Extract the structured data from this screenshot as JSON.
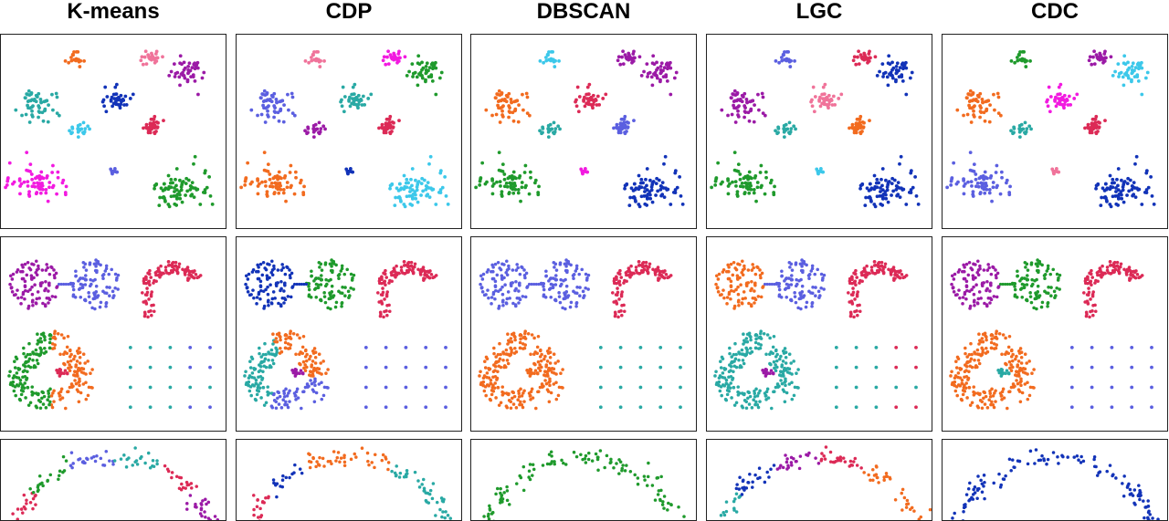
{
  "figure": {
    "methods": [
      "K-means",
      "CDP",
      "DBSCAN",
      "LGC",
      "CDC"
    ]
  },
  "colors": {
    "orange": "#f26b1f",
    "pink": "#f0739a",
    "purple": "#9b1aa6",
    "teal": "#29a9a4",
    "navy": "#1233b8",
    "cyan": "#3cc8ea",
    "crimson": "#dc2a56",
    "magenta": "#f21ae0",
    "slate": "#5b5fe0",
    "green": "#1f9a2c"
  },
  "chart_data": [
    {
      "type": "scatter",
      "title": "K-means",
      "row": "blobs",
      "clusters": [
        {
          "color": "orange",
          "center": [
            0.33,
            0.12
          ],
          "spread": [
            0.04,
            0.04
          ],
          "n": 20
        },
        {
          "color": "pink",
          "center": [
            0.67,
            0.12
          ],
          "spread": [
            0.05,
            0.04
          ],
          "n": 25
        },
        {
          "color": "purple",
          "center": [
            0.83,
            0.19
          ],
          "spread": [
            0.08,
            0.07
          ],
          "n": 45
        },
        {
          "color": "teal",
          "center": [
            0.16,
            0.36
          ],
          "spread": [
            0.1,
            0.08
          ],
          "n": 55
        },
        {
          "color": "navy",
          "center": [
            0.52,
            0.33
          ],
          "spread": [
            0.06,
            0.06
          ],
          "n": 40
        },
        {
          "color": "cyan",
          "center": [
            0.35,
            0.49
          ],
          "spread": [
            0.05,
            0.05
          ],
          "n": 22
        },
        {
          "color": "crimson",
          "center": [
            0.67,
            0.47
          ],
          "spread": [
            0.06,
            0.05
          ],
          "n": 35
        },
        {
          "color": "magenta",
          "center": [
            0.15,
            0.76
          ],
          "spread": [
            0.14,
            0.11
          ],
          "n": 70
        },
        {
          "color": "slate",
          "center": [
            0.5,
            0.71
          ],
          "spread": [
            0.025,
            0.02
          ],
          "n": 10
        },
        {
          "color": "green",
          "center": [
            0.8,
            0.8
          ],
          "spread": [
            0.15,
            0.12
          ],
          "n": 80
        }
      ]
    },
    {
      "type": "scatter",
      "title": "CDP",
      "row": "blobs",
      "clusters": [
        {
          "color": "pink",
          "center": [
            0.35,
            0.12
          ],
          "spread": [
            0.04,
            0.04
          ],
          "n": 20
        },
        {
          "color": "magenta",
          "center": [
            0.7,
            0.12
          ],
          "spread": [
            0.05,
            0.04
          ],
          "n": 25
        },
        {
          "color": "green",
          "center": [
            0.84,
            0.19
          ],
          "spread": [
            0.08,
            0.07
          ],
          "n": 45
        },
        {
          "color": "slate",
          "center": [
            0.16,
            0.36
          ],
          "spread": [
            0.1,
            0.08
          ],
          "n": 55
        },
        {
          "color": "teal",
          "center": [
            0.53,
            0.33
          ],
          "spread": [
            0.06,
            0.06
          ],
          "n": 40
        },
        {
          "color": "purple",
          "center": [
            0.35,
            0.49
          ],
          "spread": [
            0.05,
            0.05
          ],
          "n": 22
        },
        {
          "color": "crimson",
          "center": [
            0.67,
            0.47
          ],
          "spread": [
            0.06,
            0.05
          ],
          "n": 35
        },
        {
          "color": "orange",
          "center": [
            0.16,
            0.76
          ],
          "spread": [
            0.14,
            0.11
          ],
          "n": 70
        },
        {
          "color": "navy",
          "center": [
            0.5,
            0.71
          ],
          "spread": [
            0.025,
            0.02
          ],
          "n": 10
        },
        {
          "color": "cyan",
          "center": [
            0.8,
            0.8
          ],
          "spread": [
            0.15,
            0.12
          ],
          "n": 80
        }
      ]
    },
    {
      "type": "scatter",
      "title": "DBSCAN",
      "row": "blobs",
      "clusters": [
        {
          "color": "cyan",
          "center": [
            0.35,
            0.12
          ],
          "spread": [
            0.04,
            0.04
          ],
          "n": 20
        },
        {
          "color": "purple",
          "center": [
            0.7,
            0.12
          ],
          "spread": [
            0.05,
            0.04
          ],
          "n": 25
        },
        {
          "color": "purple",
          "center": [
            0.84,
            0.19
          ],
          "spread": [
            0.08,
            0.07
          ],
          "n": 45
        },
        {
          "color": "orange",
          "center": [
            0.16,
            0.36
          ],
          "spread": [
            0.1,
            0.08
          ],
          "n": 55
        },
        {
          "color": "crimson",
          "center": [
            0.53,
            0.33
          ],
          "spread": [
            0.06,
            0.06
          ],
          "n": 40
        },
        {
          "color": "teal",
          "center": [
            0.35,
            0.49
          ],
          "spread": [
            0.05,
            0.05
          ],
          "n": 22
        },
        {
          "color": "slate",
          "center": [
            0.67,
            0.47
          ],
          "spread": [
            0.06,
            0.05
          ],
          "n": 35
        },
        {
          "color": "green",
          "center": [
            0.16,
            0.76
          ],
          "spread": [
            0.14,
            0.11
          ],
          "n": 70
        },
        {
          "color": "magenta",
          "center": [
            0.5,
            0.71
          ],
          "spread": [
            0.025,
            0.02
          ],
          "n": 10
        },
        {
          "color": "navy",
          "center": [
            0.8,
            0.8
          ],
          "spread": [
            0.15,
            0.12
          ],
          "n": 80
        }
      ]
    },
    {
      "type": "scatter",
      "title": "LGC",
      "row": "blobs",
      "clusters": [
        {
          "color": "slate",
          "center": [
            0.35,
            0.12
          ],
          "spread": [
            0.04,
            0.04
          ],
          "n": 20
        },
        {
          "color": "crimson",
          "center": [
            0.7,
            0.12
          ],
          "spread": [
            0.05,
            0.04
          ],
          "n": 25
        },
        {
          "color": "navy",
          "center": [
            0.84,
            0.19
          ],
          "spread": [
            0.08,
            0.07
          ],
          "n": 45
        },
        {
          "color": "purple",
          "center": [
            0.16,
            0.36
          ],
          "spread": [
            0.1,
            0.08
          ],
          "n": 55
        },
        {
          "color": "pink",
          "center": [
            0.53,
            0.33
          ],
          "spread": [
            0.06,
            0.06
          ],
          "n": 40
        },
        {
          "color": "teal",
          "center": [
            0.35,
            0.49
          ],
          "spread": [
            0.05,
            0.05
          ],
          "n": 22
        },
        {
          "color": "orange",
          "center": [
            0.67,
            0.47
          ],
          "spread": [
            0.06,
            0.05
          ],
          "n": 35
        },
        {
          "color": "green",
          "center": [
            0.16,
            0.76
          ],
          "spread": [
            0.14,
            0.11
          ],
          "n": 70
        },
        {
          "color": "cyan",
          "center": [
            0.5,
            0.71
          ],
          "spread": [
            0.025,
            0.02
          ],
          "n": 10
        },
        {
          "color": "navy",
          "center": [
            0.8,
            0.8
          ],
          "spread": [
            0.15,
            0.12
          ],
          "n": 80
        }
      ]
    },
    {
      "type": "scatter",
      "title": "CDC",
      "row": "blobs",
      "clusters": [
        {
          "color": "green",
          "center": [
            0.35,
            0.12
          ],
          "spread": [
            0.04,
            0.04
          ],
          "n": 20
        },
        {
          "color": "purple",
          "center": [
            0.7,
            0.12
          ],
          "spread": [
            0.05,
            0.04
          ],
          "n": 25
        },
        {
          "color": "cyan",
          "center": [
            0.84,
            0.19
          ],
          "spread": [
            0.08,
            0.07
          ],
          "n": 45
        },
        {
          "color": "orange",
          "center": [
            0.16,
            0.36
          ],
          "spread": [
            0.1,
            0.08
          ],
          "n": 55
        },
        {
          "color": "magenta",
          "center": [
            0.53,
            0.33
          ],
          "spread": [
            0.06,
            0.06
          ],
          "n": 40
        },
        {
          "color": "teal",
          "center": [
            0.35,
            0.49
          ],
          "spread": [
            0.05,
            0.05
          ],
          "n": 22
        },
        {
          "color": "crimson",
          "center": [
            0.67,
            0.47
          ],
          "spread": [
            0.06,
            0.05
          ],
          "n": 35
        },
        {
          "color": "slate",
          "center": [
            0.16,
            0.76
          ],
          "spread": [
            0.14,
            0.11
          ],
          "n": 70
        },
        {
          "color": "pink",
          "center": [
            0.5,
            0.71
          ],
          "spread": [
            0.025,
            0.02
          ],
          "n": 10
        },
        {
          "color": "navy",
          "center": [
            0.8,
            0.8
          ],
          "spread": [
            0.15,
            0.12
          ],
          "n": 80
        }
      ]
    },
    {
      "type": "scatter",
      "title": "K-means",
      "row": "shapes",
      "parts": {
        "disc_left": "purple",
        "bridge": "slate",
        "disc_right": "slate",
        "arch": "crimson",
        "ring_left": "green",
        "ring_right": "orange",
        "core": "crimson",
        "grid": [
          "teal",
          "slate"
        ]
      }
    },
    {
      "type": "scatter",
      "title": "CDP",
      "row": "shapes",
      "parts": {
        "disc_left": "navy",
        "bridge": "navy",
        "disc_right": "green",
        "arch": "crimson",
        "ring_segments": [
          "teal",
          "orange",
          "slate"
        ],
        "core": "purple",
        "grid": [
          "slate",
          "slate"
        ]
      }
    },
    {
      "type": "scatter",
      "title": "DBSCAN",
      "row": "shapes",
      "parts": {
        "disc_left": "slate",
        "bridge": "slate",
        "disc_right": "slate",
        "arch": "crimson",
        "ring": "orange",
        "core": "orange",
        "grid": [
          "teal",
          "teal"
        ]
      }
    },
    {
      "type": "scatter",
      "title": "LGC",
      "row": "shapes",
      "parts": {
        "disc_left": "orange",
        "bridge": "slate",
        "disc_right": "slate",
        "arch": "crimson",
        "ring": "teal",
        "core": "purple",
        "grid": [
          "teal",
          "crimson"
        ]
      }
    },
    {
      "type": "scatter",
      "title": "CDC",
      "row": "shapes",
      "parts": {
        "disc_left": "purple",
        "bridge": "green",
        "disc_right": "green",
        "arch": "crimson",
        "ring": "orange",
        "core": "teal",
        "grid": [
          "slate",
          "slate"
        ]
      }
    },
    {
      "type": "scatter",
      "title": "K-means",
      "row": "arc",
      "segments": [
        "crimson",
        "green",
        "slate",
        "teal",
        "crimson",
        "purple"
      ]
    },
    {
      "type": "scatter",
      "title": "CDP",
      "row": "arc",
      "segments": [
        "crimson",
        "navy",
        "orange",
        "orange",
        "teal",
        "teal"
      ]
    },
    {
      "type": "scatter",
      "title": "DBSCAN",
      "row": "arc",
      "segments": [
        "green",
        "green",
        "green",
        "green",
        "green",
        "green"
      ]
    },
    {
      "type": "scatter",
      "title": "LGC",
      "row": "arc",
      "segments": [
        "teal",
        "navy",
        "purple",
        "crimson",
        "orange",
        "orange"
      ]
    },
    {
      "type": "scatter",
      "title": "CDC",
      "row": "arc",
      "segments": [
        "navy",
        "navy",
        "navy",
        "navy",
        "navy",
        "navy"
      ]
    }
  ]
}
